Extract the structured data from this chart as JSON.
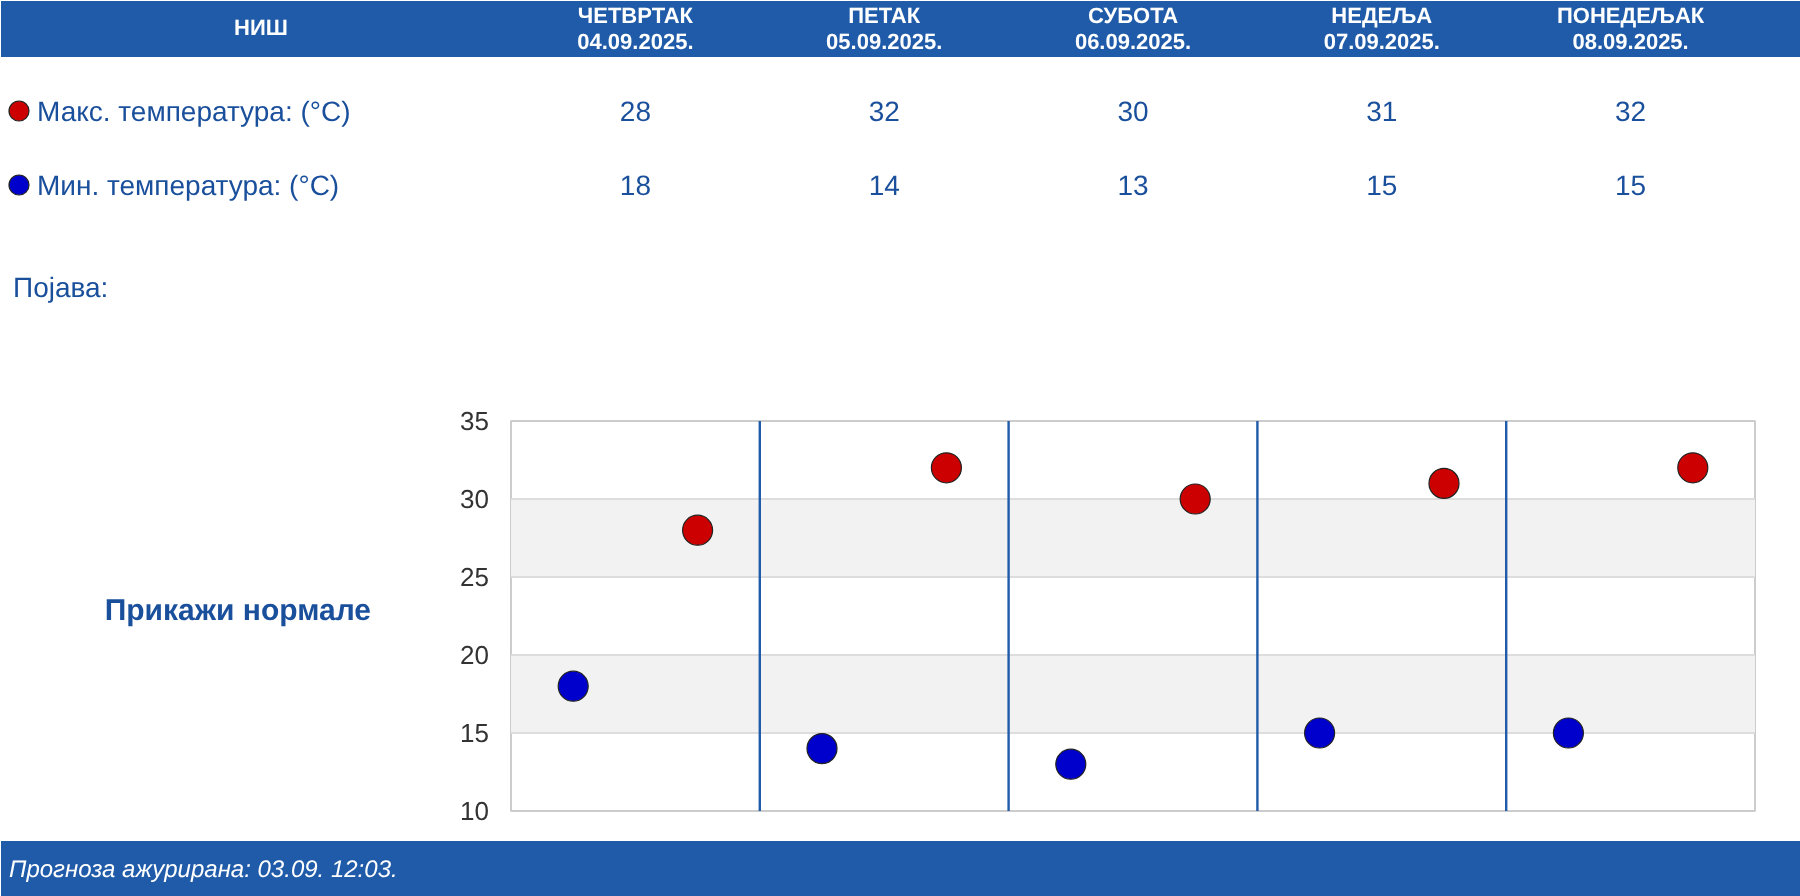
{
  "chart_data": {
    "type": "scatter",
    "title": "НИШ",
    "categories": [
      "ЧЕТВРТАК\n04.09.2025.",
      "ПЕТАК\n05.09.2025.",
      "СУБОТА\n06.09.2025.",
      "НЕДЕЉА\n07.09.2025.",
      "ПОНЕДЕЉАК\n08.09.2025."
    ],
    "series": [
      {
        "name": "Макс. температура: (°C)",
        "color": "#cc0000",
        "values": [
          28,
          32,
          30,
          31,
          32
        ]
      },
      {
        "name": "Мин. температура: (°C)",
        "color": "#0000cc",
        "values": [
          18,
          14,
          13,
          15,
          15
        ]
      }
    ],
    "ylim": [
      10,
      35
    ],
    "yticks": [
      10,
      15,
      20,
      25,
      30,
      35
    ],
    "grid": "y",
    "legend": "top left",
    "marker": "circle",
    "data_labels": true,
    "annotations": [
      "Појава:",
      "Прикажи нормале",
      "Прогноза ажурирана:  03.09. 12:03."
    ]
  }
}
